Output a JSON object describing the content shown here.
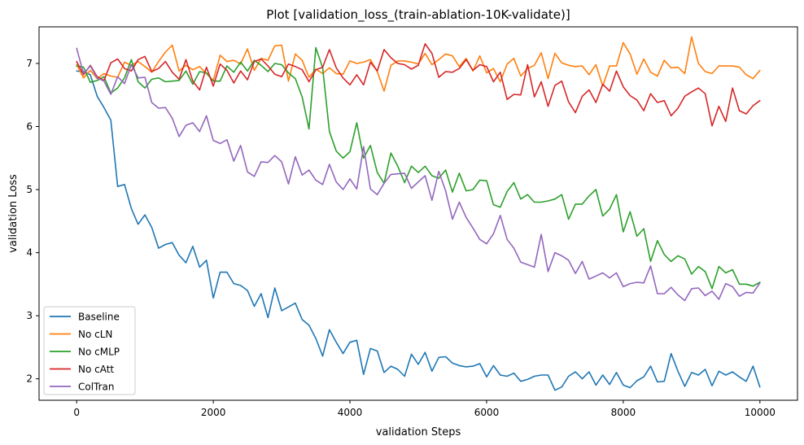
{
  "chart_data": {
    "type": "line",
    "title": "Plot [validation_loss_(train-ablation-10K-validate)]",
    "xlabel": "validation Steps",
    "ylabel": "validation Loss",
    "xlim": [
      -550,
      10550
    ],
    "ylim": [
      1.66,
      7.58
    ],
    "x_ticks": [
      0,
      2000,
      4000,
      6000,
      8000,
      10000
    ],
    "y_ticks": [
      2,
      3,
      4,
      5,
      6,
      7
    ],
    "grid": false,
    "legend_position": "lower-left",
    "x": [
      0,
      100,
      200,
      300,
      400,
      500,
      600,
      700,
      800,
      900,
      1000,
      1100,
      1200,
      1300,
      1400,
      1500,
      1600,
      1700,
      1800,
      1900,
      2000,
      2100,
      2200,
      2300,
      2400,
      2500,
      2600,
      2700,
      2800,
      2900,
      3000,
      3100,
      3200,
      3300,
      3400,
      3500,
      3600,
      3700,
      3800,
      3900,
      4000,
      4100,
      4200,
      4300,
      4400,
      4500,
      4600,
      4700,
      4800,
      4900,
      5000,
      5100,
      5200,
      5300,
      5400,
      5500,
      5600,
      5700,
      5800,
      5900,
      6000,
      6100,
      6200,
      6300,
      6400,
      6500,
      6600,
      6700,
      6800,
      6900,
      7000,
      7100,
      7200,
      7300,
      7400,
      7500,
      7600,
      7700,
      7800,
      7900,
      8000,
      8100,
      8200,
      8300,
      8400,
      8500,
      8600,
      8700,
      8800,
      8900,
      9000,
      9100,
      9200,
      9300,
      9400,
      9500,
      9600,
      9700,
      9800,
      9900,
      10000
    ],
    "series": [
      {
        "name": "Baseline",
        "color": "#1f77b4",
        "values": [
          6.88,
          6.87,
          6.82,
          6.48,
          6.3,
          6.1,
          5.05,
          5.08,
          4.7,
          4.45,
          4.6,
          4.4,
          4.07,
          4.13,
          4.16,
          3.96,
          3.84,
          4.1,
          3.77,
          3.88,
          3.28,
          3.69,
          3.69,
          3.51,
          3.48,
          3.4,
          3.15,
          3.35,
          2.97,
          3.44,
          3.08,
          3.14,
          3.2,
          2.94,
          2.85,
          2.64,
          2.36,
          2.78,
          2.58,
          2.4,
          2.58,
          2.61,
          2.07,
          2.48,
          2.44,
          2.1,
          2.2,
          2.15,
          2.04,
          2.39,
          2.23,
          2.42,
          2.12,
          2.34,
          2.35,
          2.25,
          2.21,
          2.19,
          2.2,
          2.24,
          2.03,
          2.21,
          2.06,
          2.04,
          2.09,
          1.96,
          1.99,
          2.04,
          2.06,
          2.06,
          1.82,
          1.87,
          2.04,
          2.11,
          2.0,
          2.11,
          1.9,
          2.06,
          1.91,
          2.1,
          1.9,
          1.86,
          1.97,
          2.03,
          2.2,
          1.95,
          1.96,
          2.4,
          2.12,
          1.88,
          2.1,
          2.06,
          2.15,
          1.89,
          2.12,
          2.06,
          2.11,
          2.03,
          1.96,
          2.2,
          1.87
        ]
      },
      {
        "name": "No cLN",
        "color": "#ff7f0e",
        "values": [
          6.98,
          6.77,
          6.89,
          6.76,
          6.84,
          6.8,
          6.78,
          7.02,
          6.97,
          7.03,
          6.95,
          6.86,
          7.03,
          7.18,
          7.29,
          6.88,
          6.97,
          6.9,
          6.95,
          6.84,
          6.73,
          7.13,
          7.03,
          7.05,
          6.99,
          7.23,
          6.89,
          7.08,
          7.05,
          7.28,
          7.29,
          6.72,
          7.15,
          7.05,
          6.78,
          6.91,
          6.84,
          6.93,
          6.84,
          6.83,
          7.04,
          7.0,
          7.02,
          7.06,
          6.87,
          6.56,
          6.97,
          7.04,
          7.04,
          7.02,
          6.99,
          7.16,
          6.98,
          7.06,
          7.15,
          7.12,
          6.95,
          7.08,
          6.88,
          7.12,
          6.85,
          6.92,
          6.71,
          6.99,
          7.08,
          6.8,
          6.92,
          6.97,
          7.17,
          6.76,
          7.16,
          7.01,
          6.97,
          6.95,
          6.96,
          6.82,
          6.98,
          6.64,
          6.96,
          6.96,
          7.33,
          7.15,
          6.83,
          7.07,
          6.86,
          6.8,
          7.05,
          6.93,
          6.94,
          6.84,
          7.42,
          7.0,
          6.87,
          6.84,
          6.96,
          6.96,
          6.96,
          6.94,
          6.82,
          6.76,
          6.89
        ]
      },
      {
        "name": "No cMLP",
        "color": "#2ca02c",
        "values": [
          6.96,
          6.94,
          6.7,
          6.73,
          6.79,
          6.53,
          6.61,
          6.77,
          7.06,
          6.71,
          6.61,
          6.75,
          6.77,
          6.71,
          6.72,
          6.73,
          6.88,
          6.67,
          6.87,
          6.85,
          6.72,
          6.72,
          6.96,
          6.86,
          7.02,
          6.88,
          7.05,
          6.97,
          6.87,
          7.0,
          6.98,
          6.85,
          6.76,
          6.47,
          5.96,
          7.25,
          6.93,
          5.92,
          5.61,
          5.5,
          5.6,
          6.06,
          5.5,
          5.7,
          5.27,
          5.1,
          5.58,
          5.37,
          5.11,
          5.37,
          5.27,
          5.37,
          5.22,
          5.18,
          5.31,
          4.96,
          5.26,
          4.98,
          5.0,
          5.15,
          5.14,
          4.76,
          4.72,
          4.97,
          5.11,
          4.85,
          4.92,
          4.8,
          4.8,
          4.82,
          4.85,
          4.92,
          4.53,
          4.77,
          4.77,
          4.9,
          5.0,
          4.58,
          4.69,
          4.92,
          4.33,
          4.65,
          4.26,
          4.38,
          3.86,
          4.19,
          3.97,
          3.86,
          3.95,
          3.9,
          3.66,
          3.78,
          3.7,
          3.43,
          3.78,
          3.68,
          3.73,
          3.5,
          3.5,
          3.47,
          3.53
        ]
      },
      {
        "name": "No cAtt",
        "color": "#d62728",
        "values": [
          7.03,
          6.82,
          6.97,
          6.79,
          6.73,
          7.01,
          7.07,
          6.92,
          6.88,
          7.06,
          7.11,
          6.87,
          6.92,
          7.03,
          6.86,
          6.75,
          7.06,
          6.72,
          6.58,
          6.94,
          6.64,
          6.99,
          6.89,
          6.69,
          6.88,
          6.74,
          7.03,
          7.07,
          6.96,
          6.83,
          6.79,
          6.99,
          6.95,
          6.9,
          6.71,
          6.9,
          6.94,
          7.22,
          6.93,
          6.77,
          6.66,
          6.82,
          6.66,
          7.02,
          6.88,
          7.22,
          7.09,
          7.0,
          6.98,
          6.91,
          6.97,
          7.31,
          7.16,
          6.78,
          6.87,
          6.86,
          6.92,
          7.06,
          6.89,
          6.98,
          6.95,
          6.71,
          6.86,
          6.43,
          6.51,
          6.5,
          6.98,
          6.47,
          6.71,
          6.32,
          6.65,
          6.72,
          6.39,
          6.22,
          6.48,
          6.58,
          6.38,
          6.67,
          6.56,
          6.88,
          6.63,
          6.49,
          6.42,
          6.25,
          6.52,
          6.38,
          6.41,
          6.17,
          6.29,
          6.48,
          6.55,
          6.61,
          6.52,
          6.01,
          6.32,
          6.08,
          6.61,
          6.25,
          6.2,
          6.33,
          6.41
        ]
      },
      {
        "name": "ColTran",
        "color": "#9467bd",
        "values": [
          7.24,
          6.84,
          6.96,
          6.77,
          6.72,
          6.51,
          6.79,
          6.68,
          6.98,
          6.77,
          6.78,
          6.38,
          6.29,
          6.3,
          6.13,
          5.84,
          6.02,
          6.06,
          5.92,
          6.17,
          5.78,
          5.73,
          5.79,
          5.45,
          5.7,
          5.28,
          5.21,
          5.44,
          5.43,
          5.54,
          5.44,
          5.09,
          5.52,
          5.23,
          5.31,
          5.15,
          5.08,
          5.4,
          5.12,
          5.0,
          5.17,
          5.01,
          5.68,
          5.01,
          4.92,
          5.1,
          5.24,
          5.25,
          5.26,
          5.02,
          5.12,
          5.22,
          4.83,
          5.29,
          4.98,
          4.53,
          4.8,
          4.56,
          4.39,
          4.21,
          4.14,
          4.3,
          4.59,
          4.21,
          4.07,
          3.85,
          3.81,
          3.77,
          4.29,
          3.7,
          4.0,
          3.95,
          3.88,
          3.67,
          3.86,
          3.58,
          3.63,
          3.68,
          3.6,
          3.68,
          3.46,
          3.51,
          3.53,
          3.52,
          3.79,
          3.35,
          3.35,
          3.45,
          3.33,
          3.24,
          3.43,
          3.44,
          3.32,
          3.39,
          3.26,
          3.51,
          3.46,
          3.31,
          3.37,
          3.36,
          3.52
        ]
      }
    ]
  }
}
